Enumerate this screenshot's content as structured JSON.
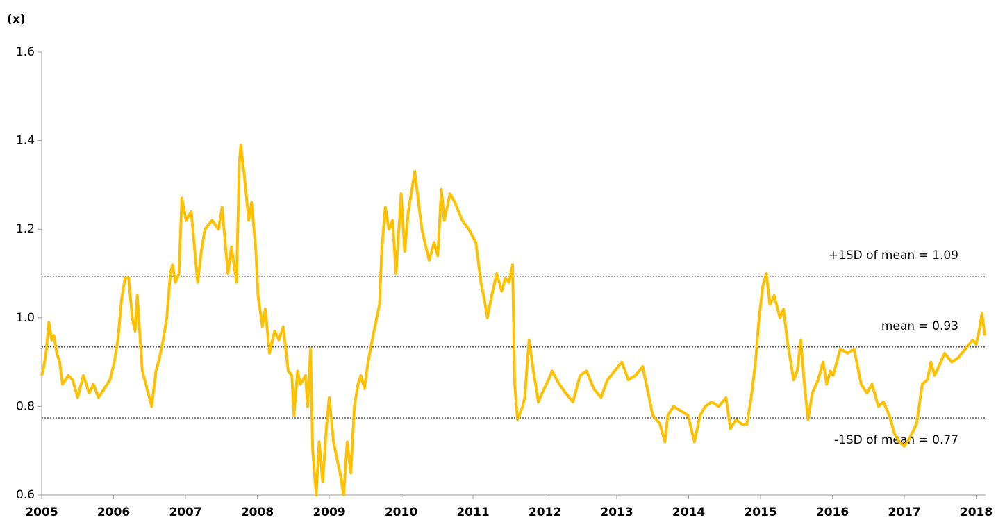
{
  "chart_data": {
    "type": "line",
    "y_label": "(x)",
    "xlim": [
      2005,
      2018.13
    ],
    "xticks": [
      2005,
      2006,
      2007,
      2008,
      2009,
      2010,
      2011,
      2012,
      2013,
      2014,
      2015,
      2016,
      2017,
      2018
    ],
    "ylim": [
      0.6,
      1.6
    ],
    "yticks": [
      0.6,
      0.8,
      {
        "value": 1,
        "label": "1.0"
      },
      1.2,
      1.4,
      1.6
    ],
    "reference_lines": [
      {
        "value": 1.094,
        "label": "+1SD of mean = 1.09"
      },
      {
        "value": 0.934,
        "label": "mean = 0.93"
      },
      {
        "value": 0.774,
        "label": "-1SD of mean = 0.77"
      }
    ],
    "series": [
      {
        "color": "#FFC000",
        "x": [
          2005.0,
          2005.03,
          2005.06,
          2005.1,
          2005.14,
          2005.17,
          2005.21,
          2005.25,
          2005.29,
          2005.37,
          2005.43,
          2005.5,
          2005.58,
          2005.66,
          2005.72,
          2005.79,
          2005.87,
          2005.95,
          2006.01,
          2006.06,
          2006.11,
          2006.16,
          2006.21,
          2006.26,
          2006.3,
          2006.33,
          2006.4,
          2006.45,
          2006.53,
          2006.59,
          2006.64,
          2006.69,
          2006.74,
          2006.79,
          2006.82,
          2006.86,
          2006.91,
          2006.95,
          2007.01,
          2007.08,
          2007.17,
          2007.22,
          2007.27,
          2007.37,
          2007.46,
          2007.51,
          2007.59,
          2007.64,
          2007.71,
          2007.75,
          2007.77,
          2007.82,
          2007.88,
          2007.92,
          2007.98,
          2008.01,
          2008.07,
          2008.11,
          2008.17,
          2008.24,
          2008.3,
          2008.36,
          2008.43,
          2008.48,
          2008.51,
          2008.56,
          2008.6,
          2008.67,
          2008.7,
          2008.74,
          2008.77,
          2008.82,
          2008.86,
          2008.91,
          2008.96,
          2009.0,
          2009.06,
          2009.11,
          2009.15,
          2009.2,
          2009.25,
          2009.3,
          2009.35,
          2009.4,
          2009.44,
          2009.49,
          2009.54,
          2009.61,
          2009.66,
          2009.7,
          2009.73,
          2009.78,
          2009.83,
          2009.88,
          2009.93,
          2010.0,
          2010.05,
          2010.1,
          2010.19,
          2010.25,
          2010.29,
          2010.33,
          2010.39,
          2010.46,
          2010.51,
          2010.56,
          2010.6,
          2010.68,
          2010.75,
          2010.85,
          2010.94,
          2011.04,
          2011.11,
          2011.16,
          2011.2,
          2011.26,
          2011.33,
          2011.4,
          2011.45,
          2011.5,
          2011.55,
          2011.58,
          2011.62,
          2011.69,
          2011.72,
          2011.78,
          2011.84,
          2011.91,
          2011.96,
          2012.05,
          2012.1,
          2012.2,
          2012.29,
          2012.39,
          2012.49,
          2012.58,
          2012.68,
          2012.78,
          2012.87,
          2012.97,
          2013.07,
          2013.16,
          2013.26,
          2013.36,
          2013.45,
          2013.5,
          2013.6,
          2013.67,
          2013.71,
          2013.79,
          2013.89,
          2013.99,
          2014.08,
          2014.16,
          2014.23,
          2014.32,
          2014.42,
          2014.52,
          2014.58,
          2014.66,
          2014.74,
          2014.81,
          2014.87,
          2014.93,
          2014.98,
          2015.03,
          2015.08,
          2015.13,
          2015.19,
          2015.27,
          2015.32,
          2015.37,
          2015.42,
          2015.46,
          2015.51,
          2015.56,
          2015.61,
          2015.66,
          2015.72,
          2015.8,
          2015.87,
          2015.92,
          2015.97,
          2016.01,
          2016.06,
          2016.11,
          2016.21,
          2016.3,
          2016.4,
          2016.48,
          2016.55,
          2016.64,
          2016.71,
          2016.79,
          2016.86,
          2016.93,
          2017.0,
          2017.08,
          2017.17,
          2017.25,
          2017.32,
          2017.37,
          2017.42,
          2017.48,
          2017.56,
          2017.66,
          2017.75,
          2017.85,
          2017.95,
          2018.0,
          2018.04,
          2018.08,
          2018.12
        ],
        "values": [
          0.87,
          0.89,
          0.92,
          0.99,
          0.95,
          0.96,
          0.92,
          0.9,
          0.85,
          0.87,
          0.86,
          0.82,
          0.87,
          0.83,
          0.85,
          0.82,
          0.84,
          0.86,
          0.9,
          0.95,
          1.04,
          1.09,
          1.09,
          1.0,
          0.97,
          1.05,
          0.88,
          0.85,
          0.8,
          0.88,
          0.91,
          0.95,
          1.0,
          1.1,
          1.12,
          1.08,
          1.1,
          1.27,
          1.22,
          1.24,
          1.08,
          1.15,
          1.2,
          1.22,
          1.2,
          1.25,
          1.1,
          1.16,
          1.08,
          1.35,
          1.39,
          1.32,
          1.22,
          1.26,
          1.15,
          1.05,
          0.98,
          1.02,
          0.92,
          0.97,
          0.95,
          0.98,
          0.88,
          0.87,
          0.78,
          0.88,
          0.85,
          0.87,
          0.8,
          0.93,
          0.7,
          0.6,
          0.72,
          0.63,
          0.75,
          0.82,
          0.72,
          0.68,
          0.65,
          0.6,
          0.72,
          0.65,
          0.8,
          0.85,
          0.87,
          0.84,
          0.9,
          0.96,
          1.0,
          1.03,
          1.15,
          1.25,
          1.2,
          1.22,
          1.1,
          1.28,
          1.15,
          1.24,
          1.33,
          1.25,
          1.2,
          1.17,
          1.13,
          1.17,
          1.14,
          1.29,
          1.22,
          1.28,
          1.26,
          1.22,
          1.2,
          1.17,
          1.08,
          1.04,
          1.0,
          1.05,
          1.1,
          1.06,
          1.09,
          1.08,
          1.12,
          0.85,
          0.77,
          0.8,
          0.82,
          0.95,
          0.88,
          0.81,
          0.83,
          0.86,
          0.88,
          0.85,
          0.83,
          0.81,
          0.87,
          0.88,
          0.84,
          0.82,
          0.86,
          0.88,
          0.9,
          0.86,
          0.87,
          0.89,
          0.82,
          0.78,
          0.76,
          0.72,
          0.78,
          0.8,
          0.79,
          0.78,
          0.72,
          0.78,
          0.8,
          0.81,
          0.8,
          0.82,
          0.75,
          0.77,
          0.76,
          0.76,
          0.82,
          0.9,
          1.0,
          1.07,
          1.1,
          1.03,
          1.05,
          1.0,
          1.02,
          0.95,
          0.9,
          0.86,
          0.88,
          0.95,
          0.85,
          0.77,
          0.83,
          0.86,
          0.9,
          0.85,
          0.88,
          0.87,
          0.9,
          0.93,
          0.92,
          0.93,
          0.85,
          0.83,
          0.85,
          0.8,
          0.81,
          0.78,
          0.74,
          0.72,
          0.71,
          0.73,
          0.76,
          0.85,
          0.86,
          0.9,
          0.87,
          0.89,
          0.92,
          0.9,
          0.91,
          0.93,
          0.95,
          0.94,
          0.97,
          1.01,
          0.96
        ]
      }
    ]
  }
}
